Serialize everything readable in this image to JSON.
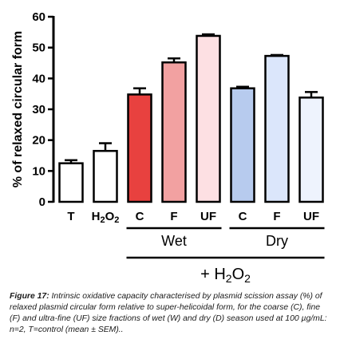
{
  "chart_data": {
    "type": "bar",
    "ylabel": "% of relaxed circular form",
    "ylim": [
      0,
      60
    ],
    "yticks": [
      0,
      10,
      20,
      30,
      40,
      50,
      60
    ],
    "grid": false,
    "categories": [
      "T",
      "H2O2",
      "C",
      "F",
      "UF",
      "C",
      "F",
      "UF"
    ],
    "values": [
      12.5,
      16.5,
      34.8,
      45.2,
      53.8,
      36.8,
      47.3,
      33.8
    ],
    "errors": [
      1.0,
      2.5,
      2.0,
      1.3,
      0.5,
      0.5,
      0.3,
      1.8
    ],
    "colors": [
      "#ffffff",
      "#ffffff",
      "#e8413f",
      "#f2a1a1",
      "#fde0e3",
      "#b7cbee",
      "#dbe6fb",
      "#eef3fd"
    ],
    "groups": [
      {
        "label": "Wet",
        "start": 2,
        "end": 4
      },
      {
        "label": "Dry",
        "start": 5,
        "end": 7
      }
    ],
    "treatment": {
      "label_prefix": "+ H",
      "label_sub": "2",
      "label_mid": "O",
      "label_sub2": "2",
      "start": 2,
      "end": 7
    }
  },
  "caption": {
    "title": "Figure 17:",
    "text": "Intrinsic oxidative capacity characterised by plasmid scission assay (%) of relaxed plasmid circular form relative to super-helicoidal form, for the coarse (C), fine (F) and ultra-fine (UF) size fractions of wet (W) and dry (D) season used at 100 µg/mL: n=2, T=control (mean ± SEM).."
  }
}
